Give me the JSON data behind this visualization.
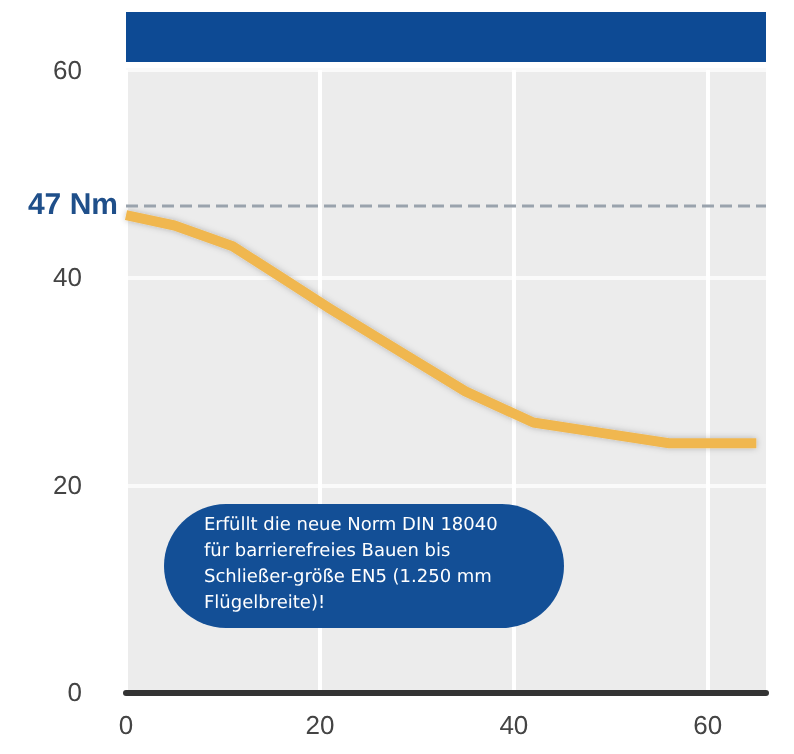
{
  "chart_data": {
    "type": "line",
    "x": [
      0,
      5,
      11,
      16,
      21,
      28,
      35,
      42,
      49,
      56,
      65
    ],
    "series": [
      {
        "color": "#f0b750",
        "values": [
          46,
          45,
          43,
          40,
          37,
          33,
          29,
          26,
          25,
          24,
          24
        ]
      }
    ],
    "xlim": [
      0,
      66
    ],
    "xticks": [
      0,
      20,
      40,
      60
    ],
    "ylim": [
      0,
      60
    ],
    "yticks": [
      0,
      20,
      40,
      60
    ],
    "grid": true,
    "marker": "none",
    "line_style": "solid",
    "ref_lines": [
      {
        "axis": "y",
        "value": 47,
        "label": "47 Nm",
        "color": "#9aa3ad",
        "line_style": "dashed"
      }
    ],
    "annotations": [
      "Erfüllt die neue Norm DIN 18040 für barrierefreies Bauen bis Schließer-größe EN5 (1.250 mm Flügelbreite)!"
    ]
  }
}
